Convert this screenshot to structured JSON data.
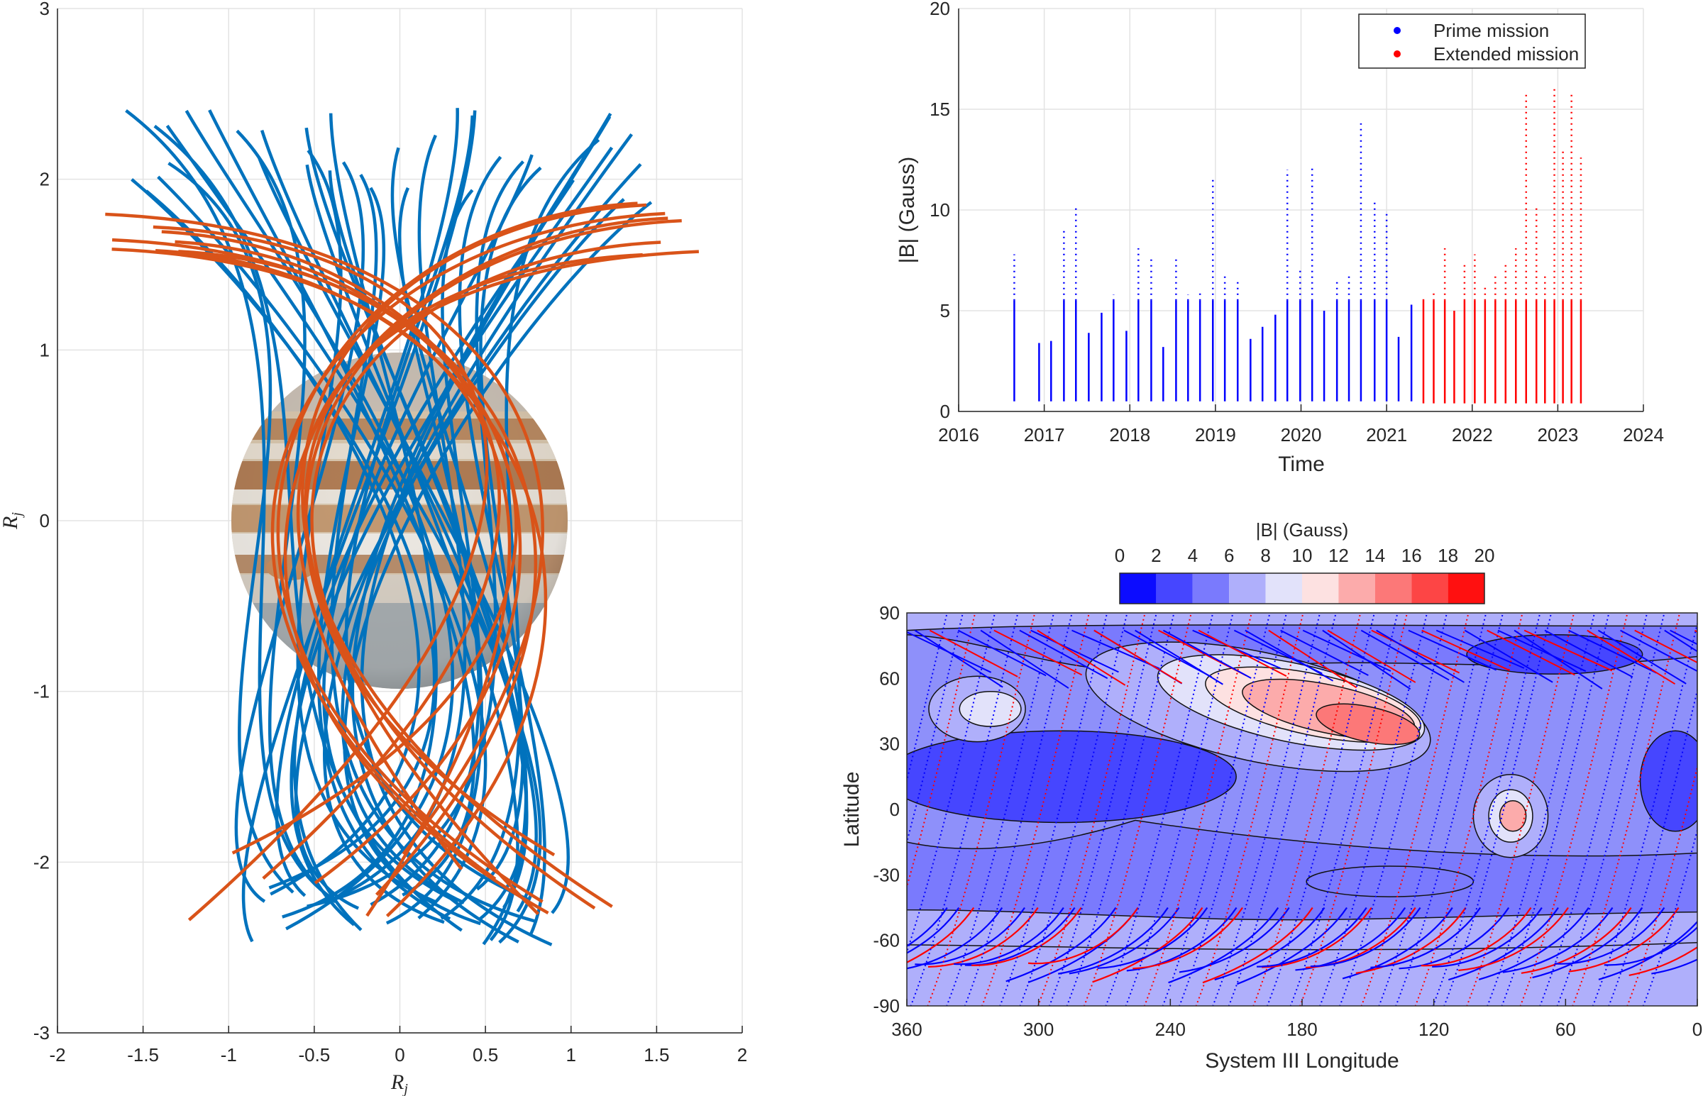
{
  "chart_data": [
    {
      "type": "line",
      "xlabel_main": "R",
      "xlabel_sub": "j",
      "ylabel_main": "R",
      "ylabel_sub": "j",
      "xlim": [
        -2,
        2
      ],
      "ylim": [
        -3,
        3
      ],
      "xticks": [
        "-2",
        "-1.5",
        "-1",
        "-0.5",
        "0",
        "0.5",
        "1",
        "1.5",
        "2"
      ],
      "yticks": [
        "-3",
        "-2",
        "-1",
        "0",
        "1",
        "2",
        "3"
      ],
      "grid": true,
      "planet_radius": 1,
      "colors": {
        "prime": "#0072bd",
        "extended": "#d95319"
      }
    },
    {
      "type": "scatter",
      "xlabel": "Time",
      "ylabel": "|B| (Gauss)",
      "xlim": [
        2016,
        2024
      ],
      "ylim": [
        0,
        20
      ],
      "xticks": [
        "2016",
        "2017",
        "2018",
        "2019",
        "2020",
        "2021",
        "2022",
        "2023",
        "2024"
      ],
      "yticks": [
        "0",
        "5",
        "10",
        "15",
        "20"
      ],
      "grid": true,
      "legend_position": "top-right",
      "series": [
        {
          "name": "Prime mission",
          "color": "#0000ff",
          "x": [
            2016.65,
            2016.94,
            2017.08,
            2017.23,
            2017.37,
            2017.52,
            2017.67,
            2017.81,
            2017.96,
            2018.1,
            2018.25,
            2018.39,
            2018.54,
            2018.68,
            2018.82,
            2018.97,
            2019.11,
            2019.26,
            2019.41,
            2019.55,
            2019.7,
            2019.84,
            2019.99,
            2020.13,
            2020.27,
            2020.42,
            2020.56,
            2020.7,
            2020.86,
            2021.0,
            2021.14,
            2021.29
          ],
          "max": [
            7.8,
            3.4,
            3.5,
            9.0,
            10.1,
            3.9,
            4.9,
            5.8,
            4.0,
            8.1,
            7.6,
            3.2,
            7.6,
            5.8,
            6.0,
            11.7,
            6.9,
            6.6,
            3.6,
            4.2,
            4.8,
            12.0,
            7.1,
            12.1,
            5.0,
            6.6,
            6.9,
            14.3,
            10.4,
            9.8,
            3.7,
            5.3
          ],
          "min": 0.5
        },
        {
          "name": "Extended mission",
          "color": "#ff0000",
          "x": [
            2021.43,
            2021.55,
            2021.68,
            2021.79,
            2021.91,
            2022.03,
            2022.15,
            2022.27,
            2022.39,
            2022.51,
            2022.63,
            2022.75,
            2022.85,
            2022.96,
            2023.06,
            2023.16,
            2023.27
          ],
          "max": [
            5.6,
            6.0,
            8.1,
            5.0,
            7.4,
            7.8,
            6.3,
            6.9,
            7.4,
            8.1,
            15.9,
            10.1,
            6.9,
            16.2,
            13.0,
            15.8,
            12.6
          ],
          "min": 0.4
        }
      ]
    },
    {
      "type": "heatmap",
      "xlabel": "System III Longitude",
      "ylabel": "Latitude",
      "colorbar_label": "|B| (Gauss)",
      "xlim": [
        360,
        0
      ],
      "ylim": [
        -90,
        90
      ],
      "xticks": [
        "360",
        "300",
        "240",
        "180",
        "120",
        "60",
        "0"
      ],
      "yticks": [
        "90",
        "60",
        "30",
        "0",
        "-30",
        "-60",
        "-90"
      ],
      "colorbar_ticks": [
        "0",
        "2",
        "4",
        "6",
        "8",
        "10",
        "12",
        "14",
        "16",
        "18",
        "20"
      ],
      "levels": [
        {
          "range": [
            0,
            2
          ],
          "color": "#0c0cff"
        },
        {
          "range": [
            2,
            4
          ],
          "color": "#4646ff"
        },
        {
          "range": [
            4,
            6
          ],
          "color": "#7a7afd"
        },
        {
          "range": [
            6,
            8
          ],
          "color": "#afaffb"
        },
        {
          "range": [
            8,
            10
          ],
          "color": "#e2e2fa"
        },
        {
          "range": [
            10,
            12
          ],
          "color": "#fde1e1"
        },
        {
          "range": [
            12,
            14
          ],
          "color": "#fcabab"
        },
        {
          "range": [
            14,
            16
          ],
          "color": "#fc7878"
        },
        {
          "range": [
            16,
            18
          ],
          "color": "#fd4545"
        },
        {
          "range": [
            18,
            20
          ],
          "color": "#ff1010"
        }
      ],
      "regions": [
        {
          "lon": 290,
          "lat": 15,
          "dlon": 80,
          "dlat": 21,
          "level": 1
        },
        {
          "lon": 10,
          "lat": 13,
          "dlon": 16,
          "dlat": 23,
          "level": 1
        },
        {
          "lon": 65,
          "lat": 71,
          "dlon": 40,
          "dlat": 9,
          "level": 1
        },
        {
          "lon": 140,
          "lat": -33,
          "dlon": 38,
          "dlat": 7,
          "level": 2
        },
        {
          "lon": 200,
          "lat": 47,
          "dlon": 80,
          "dlat": 25,
          "level": 3
        },
        {
          "lon": 185,
          "lat": 49,
          "dlon": 62,
          "dlat": 18,
          "level": 4
        },
        {
          "lon": 175,
          "lat": 48,
          "dlon": 50,
          "dlat": 14,
          "level": 5
        },
        {
          "lon": 168,
          "lat": 46,
          "dlon": 40,
          "dlat": 11,
          "level": 6
        },
        {
          "lon": 150,
          "lat": 39,
          "dlon": 24,
          "dlat": 8,
          "level": 7
        },
        {
          "lon": 328,
          "lat": 46,
          "dlon": 22,
          "dlat": 15,
          "level": 3
        },
        {
          "lon": 322,
          "lat": 46,
          "dlon": 14,
          "dlat": 8,
          "level": 4
        },
        {
          "lon": 85,
          "lat": -3,
          "dlon": 17,
          "dlat": 19,
          "level": 3
        },
        {
          "lon": 85,
          "lat": -3,
          "dlon": 10,
          "dlat": 12,
          "level": 4
        },
        {
          "lon": 84,
          "lat": -3,
          "dlon": 6,
          "dlat": 7,
          "level": 6
        }
      ]
    }
  ]
}
